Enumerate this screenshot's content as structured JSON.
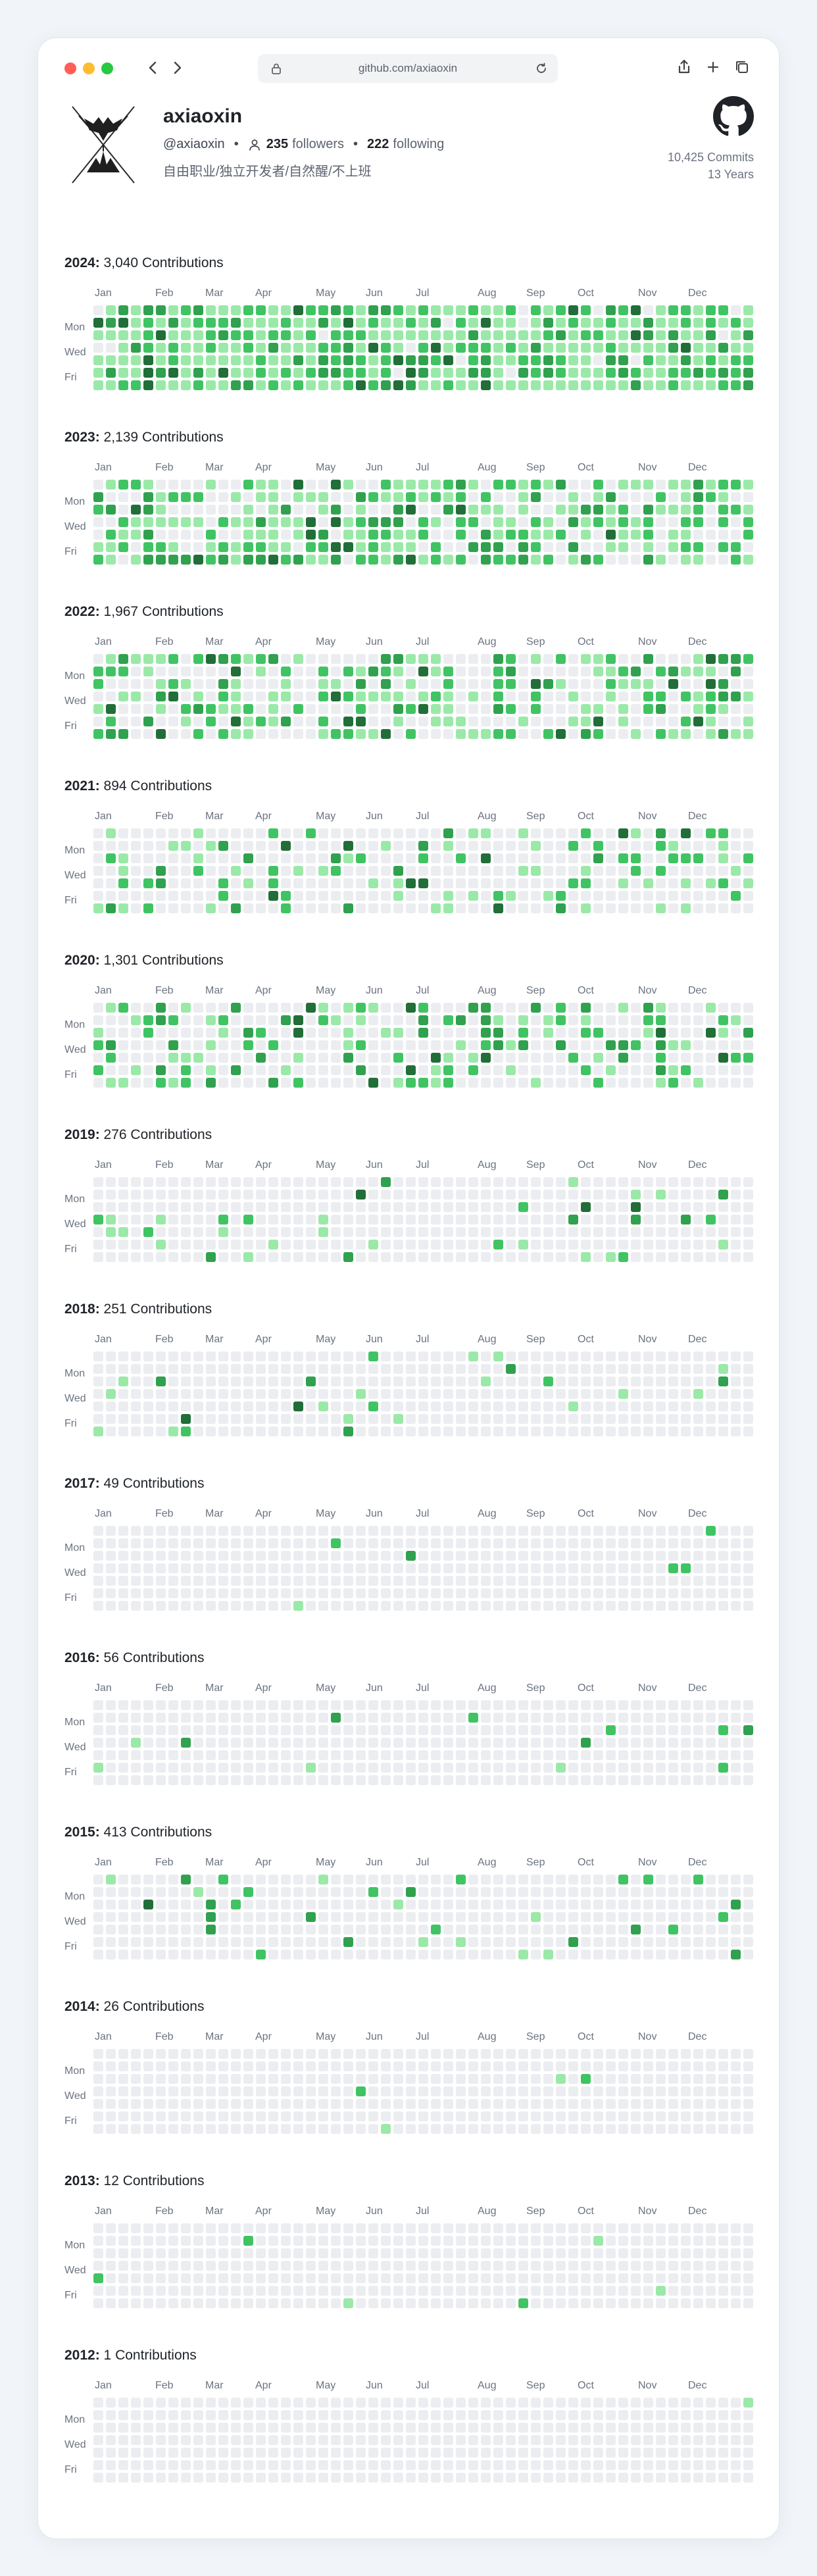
{
  "browser": {
    "url": "github.com/axiaoxin",
    "icons": [
      "back-icon",
      "forward-icon",
      "lock-icon",
      "reload-icon",
      "share-icon",
      "new-tab-icon",
      "tabs-icon"
    ]
  },
  "profile": {
    "name": "axiaoxin",
    "handle": "@axiaoxin",
    "followers_count": "235",
    "followers_label": "followers",
    "following_count": "222",
    "following_label": "following",
    "bio": "自由职业/独立开发者/自然醒/不上班",
    "commits": "10,425 Commits",
    "years": "13 Years"
  },
  "calendar": {
    "months": [
      "Jan",
      "Feb",
      "Mar",
      "Apr",
      "May",
      "Jun",
      "Jul",
      "Aug",
      "Sep",
      "Oct",
      "Nov",
      "Dec"
    ],
    "day_labels": [
      "Mon",
      "Wed",
      "Fri"
    ],
    "colors": [
      "#ebedf0",
      "#9be9a8",
      "#40c463",
      "#30a14e",
      "#216e39"
    ],
    "years": [
      {
        "year": "2024",
        "label": "3,040 Contributions",
        "total": 3040
      },
      {
        "year": "2023",
        "label": "2,139 Contributions",
        "total": 2139
      },
      {
        "year": "2022",
        "label": "1,967 Contributions",
        "total": 1967
      },
      {
        "year": "2021",
        "label": "894 Contributions",
        "total": 894
      },
      {
        "year": "2020",
        "label": "1,301 Contributions",
        "total": 1301
      },
      {
        "year": "2019",
        "label": "276 Contributions",
        "total": 276
      },
      {
        "year": "2018",
        "label": "251 Contributions",
        "total": 251
      },
      {
        "year": "2017",
        "label": "49 Contributions",
        "total": 49
      },
      {
        "year": "2016",
        "label": "56 Contributions",
        "total": 56
      },
      {
        "year": "2015",
        "label": "413 Contributions",
        "total": 413
      },
      {
        "year": "2014",
        "label": "26 Contributions",
        "total": 26
      },
      {
        "year": "2013",
        "label": "12 Contributions",
        "total": 12
      },
      {
        "year": "2012",
        "label": "1 Contributions",
        "total": 1
      }
    ]
  }
}
